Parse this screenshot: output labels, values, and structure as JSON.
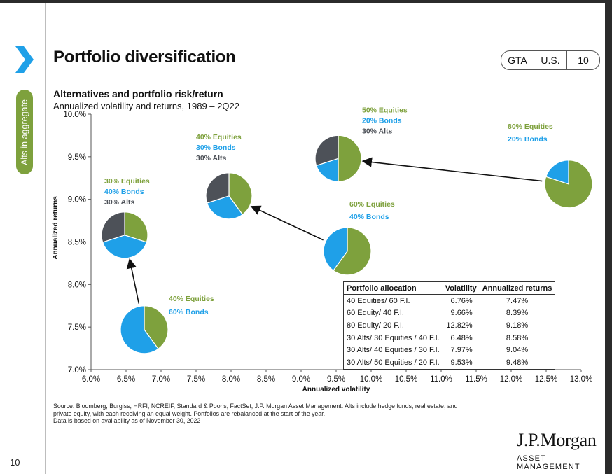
{
  "page_number": "10",
  "side_tab": "Alts in aggregate",
  "title": "Portfolio diversification",
  "tags": [
    "GTA",
    "U.S.",
    "10"
  ],
  "subtitle": "Alternatives and portfolio risk/return",
  "subtitle2": "Annualized volatility and returns, 1989 – 2Q22",
  "colors": {
    "equities": "#7ea13d",
    "bonds": "#1fa0e8",
    "alts": "#4d5158",
    "accent": "#1fa0e8"
  },
  "chart_data": {
    "type": "scatter",
    "xlabel": "Annualized volatility",
    "ylabel": "Annualized returns",
    "xlim": [
      6.0,
      13.0
    ],
    "ylim": [
      7.0,
      10.0
    ],
    "xticks": [
      "6.0%",
      "6.5%",
      "7.0%",
      "7.5%",
      "8.0%",
      "8.5%",
      "9.0%",
      "9.5%",
      "10.0%",
      "10.5%",
      "11.0%",
      "11.5%",
      "12.0%",
      "12.5%",
      "13.0%"
    ],
    "yticks": [
      "7.0%",
      "7.5%",
      "8.0%",
      "8.5%",
      "9.0%",
      "9.5%",
      "10.0%"
    ],
    "points": [
      {
        "name": "40 Equities/ 60 F.I.",
        "x": 6.76,
        "y": 7.47,
        "equities": 40,
        "bonds": 60,
        "alts": 0,
        "labels": [
          "40% Equities",
          "60% Bonds"
        ]
      },
      {
        "name": "60 Equity/ 40 F.I.",
        "x": 9.66,
        "y": 8.39,
        "equities": 60,
        "bonds": 40,
        "alts": 0,
        "labels": [
          "60% Equities",
          "40% Bonds"
        ]
      },
      {
        "name": "80 Equity/ 20 F.I.",
        "x": 12.82,
        "y": 9.18,
        "equities": 80,
        "bonds": 20,
        "alts": 0,
        "labels": [
          "80% Equities",
          "20% Bonds"
        ]
      },
      {
        "name": "30 Alts/ 30 Equities / 40 F.I.",
        "x": 6.48,
        "y": 8.58,
        "equities": 30,
        "bonds": 40,
        "alts": 30,
        "labels": [
          "30% Equities",
          "40% Bonds",
          "30% Alts"
        ]
      },
      {
        "name": "30 Alts/ 40 Equities / 30 F.I.",
        "x": 7.97,
        "y": 9.04,
        "equities": 40,
        "bonds": 30,
        "alts": 30,
        "labels": [
          "40% Equities",
          "30% Bonds",
          "30% Alts"
        ]
      },
      {
        "name": "30 Alts/ 50 Equities / 20 F.I.",
        "x": 9.53,
        "y": 9.48,
        "equities": 50,
        "bonds": 20,
        "alts": 30,
        "labels": [
          "50% Equities",
          "20% Bonds",
          "30% Alts"
        ]
      }
    ],
    "arrows": [
      {
        "from": "40 Equities/ 60 F.I.",
        "to": "30 Alts/ 30 Equities / 40 F.I."
      },
      {
        "from": "60 Equity/ 40 F.I.",
        "to": "30 Alts/ 40 Equities / 30 F.I."
      },
      {
        "from": "80 Equity/ 20 F.I.",
        "to": "30 Alts/ 50 Equities / 20 F.I."
      }
    ]
  },
  "table": {
    "headers": [
      "Portfolio allocation",
      "Volatility",
      "Annualized returns"
    ],
    "rows": [
      [
        "40 Equities/ 60 F.I.",
        "6.76%",
        "7.47%"
      ],
      [
        "60 Equity/ 40 F.I.",
        "9.66%",
        "8.39%"
      ],
      [
        "80 Equity/ 20 F.I.",
        "12.82%",
        "9.18%"
      ],
      [
        "30 Alts/ 30 Equities / 40 F.I.",
        "6.48%",
        "8.58%"
      ],
      [
        "30 Alts/ 40 Equities / 30 F.I.",
        "7.97%",
        "9.04%"
      ],
      [
        "30 Alts/ 50 Equities / 20 F.I.",
        "9.53%",
        "9.48%"
      ]
    ]
  },
  "source_line1": "Source: Bloomberg, Burgiss, HRFI, NCREIF, Standard & Poor's, FactSet, J.P. Morgan Asset Management. Alts include hedge funds, real estate, and",
  "source_line2": "private equity, with each receiving an equal weight. Portfolios are rebalanced at the start of the year.",
  "source_line3": "Data is based on availability as of November 30, 2022",
  "logo": "J.P.Morgan",
  "logo_sub": "ASSET MANAGEMENT"
}
